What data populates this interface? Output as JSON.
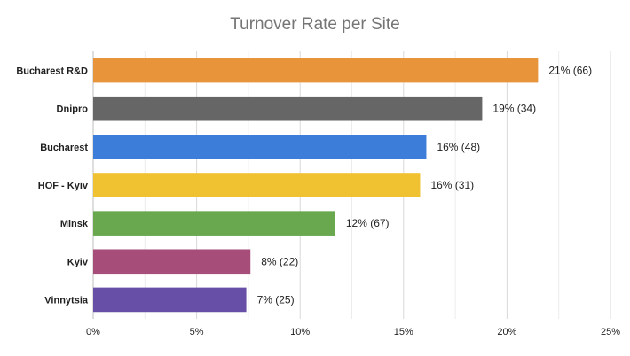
{
  "chart_data": {
    "type": "bar",
    "orientation": "horizontal",
    "title": "Turnover Rate per Site",
    "xlabel": "",
    "ylabel": "",
    "xlim": [
      0,
      25
    ],
    "x_ticks": [
      "0%",
      "5%",
      "10%",
      "15%",
      "20%",
      "25%"
    ],
    "x_tick_values": [
      0,
      5,
      10,
      15,
      20,
      25
    ],
    "grid": "vertical",
    "legend": "none",
    "categories": [
      "Bucharest R&D",
      "Dnipro",
      "Bucharest",
      "HOF - Kyiv",
      "Minsk",
      "Kyiv",
      "Vinnytsia"
    ],
    "values": [
      21.5,
      18.8,
      16.1,
      15.8,
      11.7,
      7.6,
      7.4
    ],
    "data_labels": [
      "21% (66)",
      "19% (34)",
      "16% (48)",
      "16% (31)",
      "12% (67)",
      "8% (22)",
      "7% (25)"
    ],
    "colors": [
      "#e8943a",
      "#666666",
      "#3b7dd8",
      "#f0c232",
      "#6aa84f",
      "#a64d79",
      "#674ea7"
    ]
  }
}
